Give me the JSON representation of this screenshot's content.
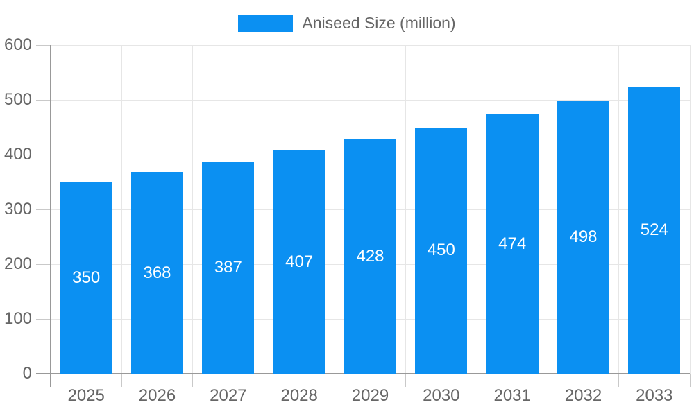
{
  "chart_data": {
    "type": "bar",
    "title": "",
    "legend_label": "Aniseed Size (million)",
    "legend_position": "top",
    "categories": [
      "2025",
      "2026",
      "2027",
      "2028",
      "2029",
      "2030",
      "2031",
      "2032",
      "2033"
    ],
    "series": [
      {
        "name": "Aniseed Size (million)",
        "values": [
          350,
          368,
          387,
          407,
          428,
          450,
          474,
          498,
          524
        ]
      }
    ],
    "xlabel": "",
    "ylabel": "",
    "ylim": [
      0,
      600
    ],
    "ytick_step": 100,
    "grid": true,
    "bar_value_labels_visible": true
  },
  "style": {
    "bar_color": "#0b90f2",
    "axis_line_color": "#999999",
    "tick_color": "#c9c9c9",
    "grid_color": "#e6e6e6",
    "axis_label_color": "#666666",
    "value_label_color": "#ffffff",
    "legend_text_color": "#666666",
    "background": "#ffffff"
  }
}
